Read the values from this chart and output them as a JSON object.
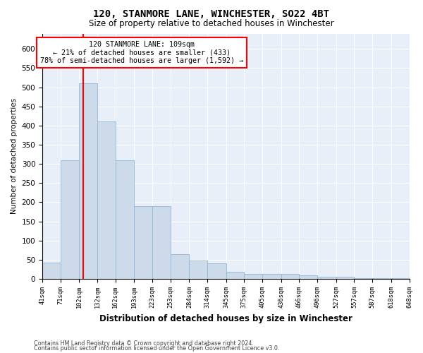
{
  "title": "120, STANMORE LANE, WINCHESTER, SO22 4BT",
  "subtitle": "Size of property relative to detached houses in Winchester",
  "xlabel": "Distribution of detached houses by size in Winchester",
  "ylabel": "Number of detached properties",
  "bar_color": "#ccdaea",
  "bar_edge_color": "#8fb8d8",
  "background_color": "#e8eff8",
  "grid_color": "#ffffff",
  "annotation_text": "120 STANMORE LANE: 109sqm\n← 21% of detached houses are smaller (433)\n78% of semi-detached houses are larger (1,592) →",
  "red_line_x": 109,
  "bin_edges": [
    41,
    71,
    102,
    132,
    162,
    193,
    223,
    253,
    284,
    314,
    345,
    375,
    405,
    436,
    466,
    496,
    527,
    557,
    587,
    618,
    648
  ],
  "bin_counts": [
    42,
    310,
    510,
    410,
    310,
    190,
    190,
    65,
    48,
    40,
    18,
    13,
    13,
    13,
    10,
    6,
    6,
    2,
    2,
    2
  ],
  "tick_labels": [
    "41sqm",
    "71sqm",
    "102sqm",
    "132sqm",
    "162sqm",
    "193sqm",
    "223sqm",
    "253sqm",
    "284sqm",
    "314sqm",
    "345sqm",
    "375sqm",
    "405sqm",
    "436sqm",
    "466sqm",
    "496sqm",
    "527sqm",
    "557sqm",
    "587sqm",
    "618sqm",
    "648sqm"
  ],
  "yticks": [
    0,
    50,
    100,
    150,
    200,
    250,
    300,
    350,
    400,
    450,
    500,
    550,
    600
  ],
  "ylim": [
    0,
    640
  ],
  "footer1": "Contains HM Land Registry data © Crown copyright and database right 2024.",
  "footer2": "Contains public sector information licensed under the Open Government Licence v3.0."
}
